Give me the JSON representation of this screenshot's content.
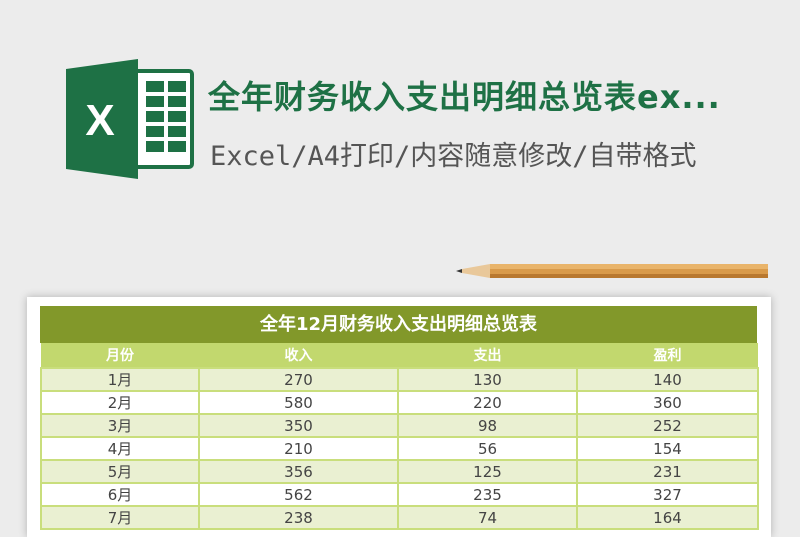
{
  "header": {
    "title": "全年财务收入支出明细总览表ex...",
    "subtitle": "Excel/A4打印/内容随意修改/自带格式",
    "logo_letter": "X"
  },
  "sheet": {
    "title": "全年12月财务收入支出明细总览表",
    "columns": [
      "月份",
      "收入",
      "支出",
      "盈利"
    ],
    "rows": [
      [
        "1月",
        "270",
        "130",
        "140"
      ],
      [
        "2月",
        "580",
        "220",
        "360"
      ],
      [
        "3月",
        "350",
        "98",
        "252"
      ],
      [
        "4月",
        "210",
        "56",
        "154"
      ],
      [
        "5月",
        "356",
        "125",
        "231"
      ],
      [
        "6月",
        "562",
        "235",
        "327"
      ],
      [
        "7月",
        "238",
        "74",
        "164"
      ]
    ]
  },
  "colors": {
    "excel_green": "#1e7145",
    "title_bar": "#82982a",
    "header_row": "#c2d86e",
    "odd_row": "#eaf0d2"
  }
}
